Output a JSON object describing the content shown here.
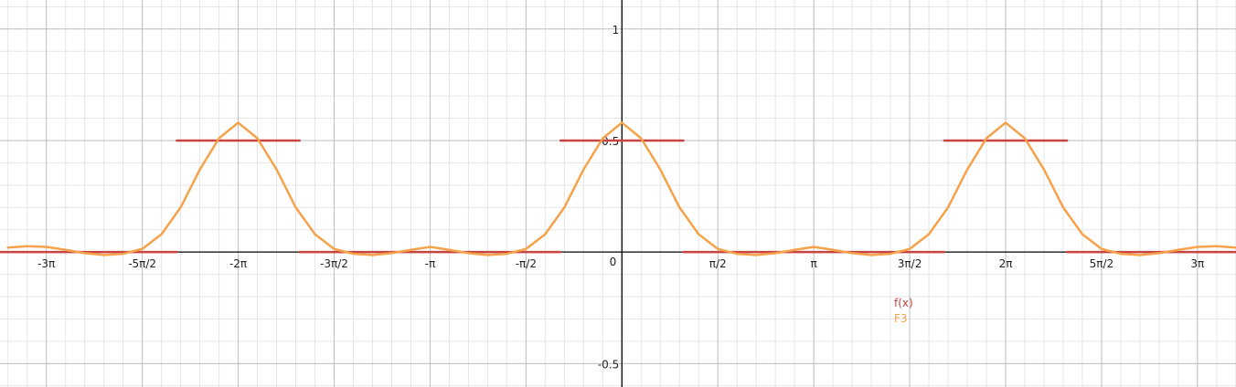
{
  "chart_data": {
    "type": "line",
    "title": "",
    "xlabel": "",
    "ylabel": "",
    "xlim": [
      -3.2416,
      3.2008
    ],
    "ylim": [
      -0.605,
      1.13
    ],
    "x_unit": "pi",
    "grid": true,
    "x_ticks": [
      {
        "value": -3,
        "label": "-3π"
      },
      {
        "value": -2.5,
        "label": "-5π/2"
      },
      {
        "value": -2,
        "label": "-2π"
      },
      {
        "value": -1.5,
        "label": "-3π/2"
      },
      {
        "value": -1,
        "label": "-π"
      },
      {
        "value": -0.5,
        "label": "-π/2"
      },
      {
        "value": 0.5,
        "label": "π/2"
      },
      {
        "value": 1,
        "label": "π"
      },
      {
        "value": 1.5,
        "label": "3π/2"
      },
      {
        "value": 2,
        "label": "2π"
      },
      {
        "value": 2.5,
        "label": "5π/2"
      },
      {
        "value": 3,
        "label": "3π"
      }
    ],
    "y_ticks": [
      {
        "value": 1,
        "label": "1"
      },
      {
        "value": 0.5,
        "label": "0.5"
      },
      {
        "value": -0.5,
        "label": "-0.5"
      }
    ],
    "origin_label": "0",
    "series": [
      {
        "name": "f(x)",
        "color": "#c74440",
        "kind": "step",
        "segments": [
          {
            "x0": -3.2416,
            "x1": -2.32,
            "y": 0
          },
          {
            "x0": -2.32,
            "x1": -1.68,
            "y": 0.5
          },
          {
            "x0": -1.68,
            "x1": -0.32,
            "y": 0
          },
          {
            "x0": -0.32,
            "x1": 0.32,
            "y": 0.5
          },
          {
            "x0": 0.32,
            "x1": 1.68,
            "y": 0
          },
          {
            "x0": 1.68,
            "x1": 2.32,
            "y": 0.5
          },
          {
            "x0": 2.32,
            "x1": 3.2008,
            "y": 0
          }
        ]
      },
      {
        "name": "F3",
        "color": "#f5a24b",
        "kind": "line",
        "x": [
          -3.2,
          -3.1,
          -3.0,
          -2.9,
          -2.8,
          -2.7,
          -2.6,
          -2.5,
          -2.4,
          -2.3,
          -2.2,
          -2.1,
          -2.0,
          -1.9,
          -1.8,
          -1.7,
          -1.6,
          -1.5,
          -1.4,
          -1.3,
          -1.2,
          -1.1,
          -1.0,
          -0.9,
          -0.8,
          -0.7,
          -0.6,
          -0.5,
          -0.4,
          -0.3,
          -0.2,
          -0.1,
          0.0,
          0.1,
          0.2,
          0.3,
          0.4,
          0.5,
          0.6,
          0.7,
          0.8,
          0.9,
          1.0,
          1.1,
          1.2,
          1.3,
          1.4,
          1.5,
          1.6,
          1.7,
          1.8,
          1.9,
          2.0,
          2.1,
          2.2,
          2.3,
          2.4,
          2.5,
          2.6,
          2.7,
          2.8,
          2.9,
          3.0,
          3.1,
          3.2
        ],
        "y": [
          0.02,
          0.026,
          0.023,
          0.01,
          -0.005,
          -0.013,
          -0.008,
          0.014,
          0.08,
          0.2,
          0.37,
          0.51,
          0.58,
          0.51,
          0.37,
          0.2,
          0.08,
          0.014,
          -0.008,
          -0.013,
          -0.005,
          0.01,
          0.023,
          0.01,
          -0.005,
          -0.013,
          -0.008,
          0.014,
          0.08,
          0.2,
          0.37,
          0.51,
          0.58,
          0.51,
          0.37,
          0.2,
          0.08,
          0.014,
          -0.008,
          -0.013,
          -0.005,
          0.01,
          0.023,
          0.01,
          -0.005,
          -0.013,
          -0.008,
          0.014,
          0.08,
          0.2,
          0.37,
          0.51,
          0.58,
          0.51,
          0.37,
          0.2,
          0.08,
          0.014,
          -0.008,
          -0.013,
          -0.005,
          0.01,
          0.023,
          0.026,
          0.02
        ]
      }
    ],
    "legend": {
      "placement": "bottom-right",
      "entries": [
        {
          "label": "f(x)",
          "color": "#c74440"
        },
        {
          "label": "F3",
          "color": "#f5a24b"
        }
      ]
    }
  }
}
